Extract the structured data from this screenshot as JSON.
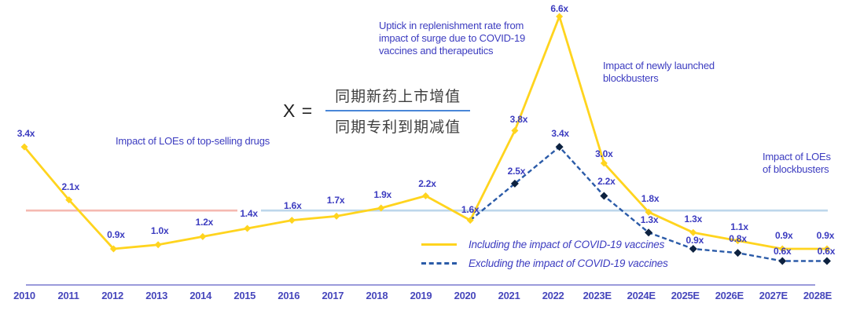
{
  "colors": {
    "series_yellow": "#FFD41E",
    "series_blue": "#2B5BA8",
    "marker_navy": "#0D2240",
    "label_blue": "#3C3CC0",
    "axis_label_blue": "#4747BC",
    "axis_line": "#7A7ACF",
    "refline_pink": "#F5B9B1",
    "refline_light_blue": "#BDD7EB",
    "frac_bar": "#4A86D8",
    "formula_text": "#3F3F3F",
    "formula_dark": "#222222"
  },
  "formula": {
    "lhs": "X =",
    "numerator": "同期新药上市增值",
    "denominator": "同期专利到期减值"
  },
  "annotations": {
    "loe_top_selling": "Impact of LOEs of top-selling drugs",
    "uptick": "Uptick in replenishment rate from\nimpact of surge due to COVID-19\nvaccines and therapeutics",
    "newly_launched": "Impact of newly launched\nblockbusters",
    "loe_blockbusters": "Impact of LOEs\nof blockbusters"
  },
  "legend": {
    "including": "Including the impact of COVID-19 vaccines",
    "excluding": "Excluding the impact of COVID-19 vaccines"
  },
  "chart_data": {
    "type": "line",
    "categories": [
      "2010",
      "2011",
      "2012",
      "2013",
      "2014",
      "2015",
      "2016",
      "2017",
      "2018",
      "2019",
      "2020",
      "2021",
      "2022",
      "2023E",
      "2024E",
      "2025E",
      "2026E",
      "2027E",
      "2028E"
    ],
    "series": [
      {
        "name": "Including the impact of COVID-19 vaccines",
        "style": "solid",
        "color": "#FFD41E",
        "marker": "diamond",
        "marker_color": "#FFD41E",
        "values": [
          3.4,
          2.1,
          0.9,
          1.0,
          1.2,
          1.4,
          1.6,
          1.7,
          1.9,
          2.2,
          1.6,
          3.8,
          6.6,
          3.0,
          1.8,
          1.3,
          1.1,
          0.9,
          0.9
        ],
        "labels": [
          "3.4x",
          "2.1x",
          "0.9x",
          "1.0x",
          "1.2x",
          "1.4x",
          "1.6x",
          "1.7x",
          "1.9x",
          "2.2x",
          "1.6x",
          "3.8x",
          "6.6x",
          "3.0x",
          "1.8x",
          "1.3x",
          "1.1x",
          "0.9x",
          "0.9x"
        ]
      },
      {
        "name": "Excluding the impact of COVID-19 vaccines",
        "style": "dashed",
        "color": "#2B5BA8",
        "marker": "diamond",
        "marker_color": "#0D2240",
        "values": [
          null,
          null,
          null,
          null,
          null,
          null,
          null,
          null,
          null,
          null,
          1.6,
          2.5,
          3.4,
          2.2,
          1.3,
          0.9,
          0.8,
          0.6,
          0.6
        ],
        "labels": [
          null,
          null,
          null,
          null,
          null,
          null,
          null,
          null,
          null,
          null,
          null,
          "2.5x",
          "3.4x",
          "2.2x",
          "1.3x",
          "0.9x",
          "0.8x",
          "0.6x",
          "0.6x"
        ]
      }
    ],
    "reference_lines": [
      {
        "name": "baseline-early-period",
        "value": 1.84,
        "color": "#F5B9B1"
      },
      {
        "name": "baseline-full-period",
        "value": 1.84,
        "color": "#BDD7EB"
      }
    ],
    "title": "",
    "xlabel": "",
    "ylabel": "",
    "ylim": [
      0,
      7
    ],
    "grid": false,
    "legend_position": "bottom-center"
  }
}
